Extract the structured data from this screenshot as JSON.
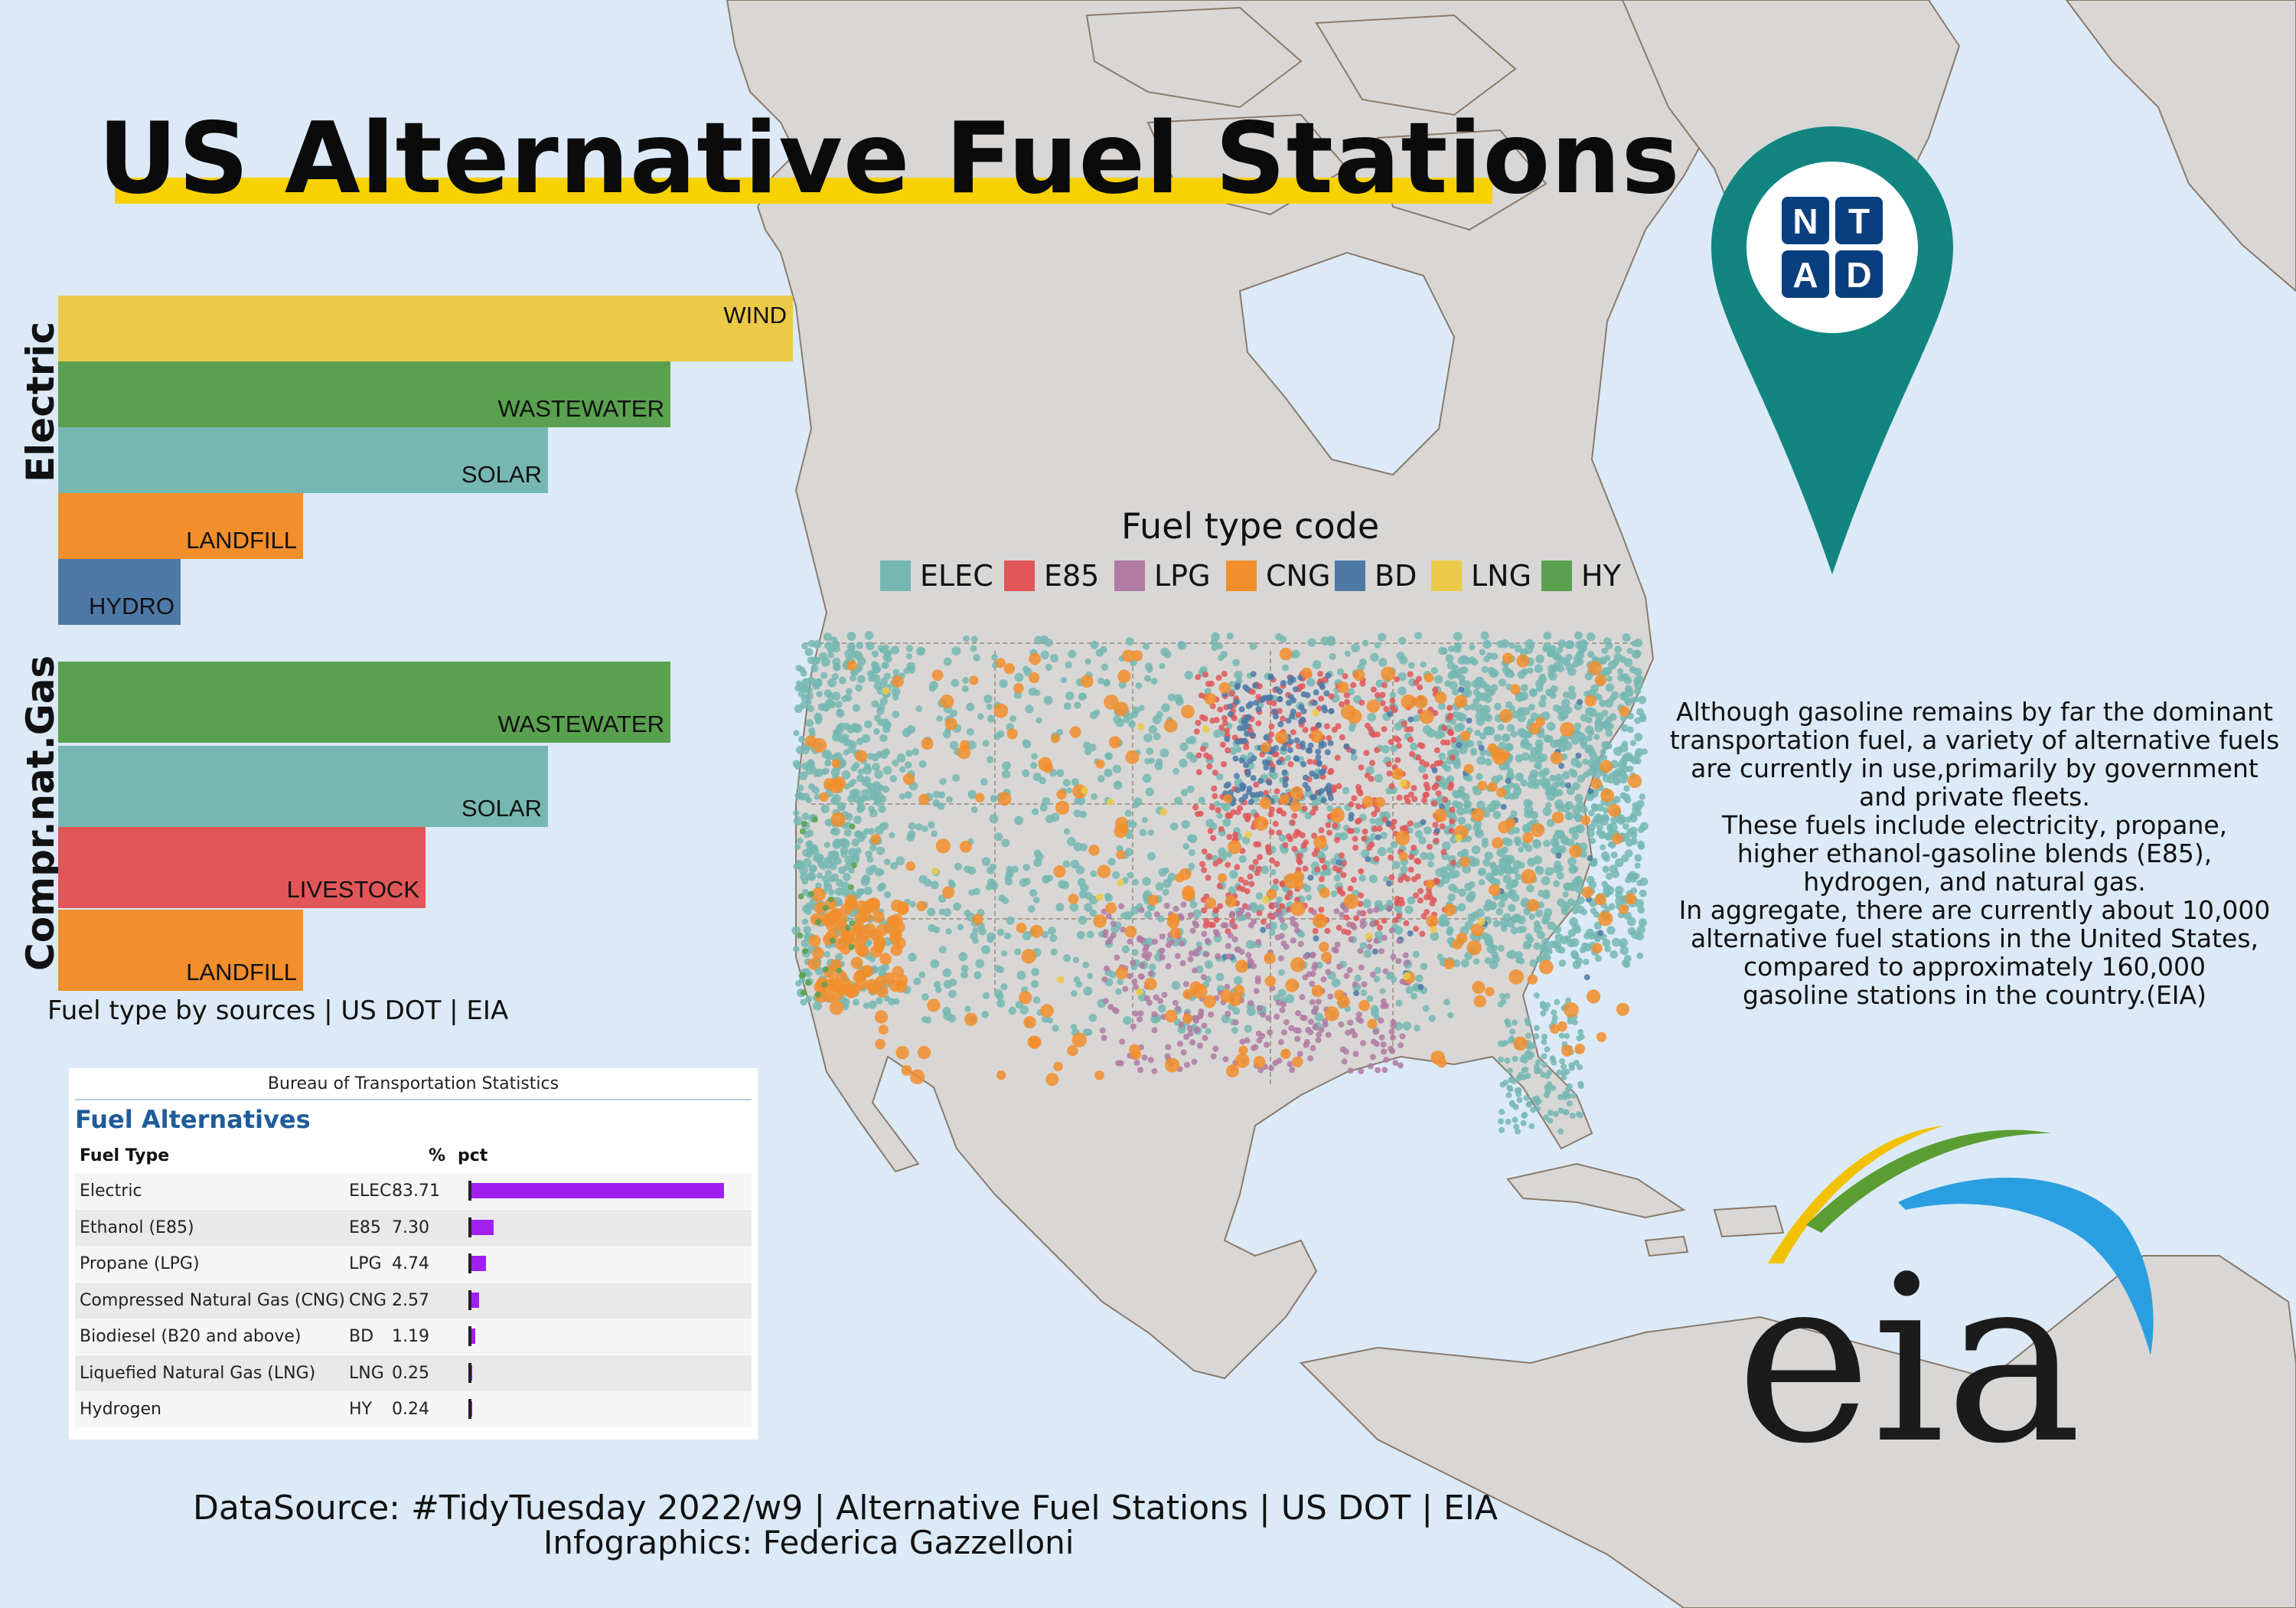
{
  "title": "US Alternative Fuel Stations",
  "colors": {
    "ocean": "#dceaf8",
    "land": "#d8d7d6",
    "title_underline": "#f7d200",
    "ELEC": "#76b7b2",
    "E85": "#e15759",
    "LPG": "#b07aa1",
    "CNG": "#f28e2b",
    "BD": "#4e79a7",
    "LNG": "#edc948",
    "HY": "#59a14f",
    "table_bar": "#a020f0",
    "ntad_pin": "#128580",
    "ntad_tile": "#0a3f7f"
  },
  "legend": {
    "title": "Fuel type code",
    "items": [
      {
        "code": "ELEC",
        "color": "#76b7b2"
      },
      {
        "code": "E85",
        "color": "#e15759"
      },
      {
        "code": "LPG",
        "color": "#b07aa1"
      },
      {
        "code": "CNG",
        "color": "#f28e2b"
      },
      {
        "code": "BD",
        "color": "#4e79a7"
      },
      {
        "code": "LNG",
        "color": "#edc948"
      },
      {
        "code": "HY",
        "color": "#59a14f"
      }
    ]
  },
  "source_charts": {
    "caption": "Fuel type by sources | US DOT | EIA",
    "groups": [
      {
        "name": "Electric",
        "bars": [
          {
            "label": "WIND",
            "value": 6,
            "color": "#edc948"
          },
          {
            "label": "WASTEWATER",
            "value": 5,
            "color": "#59a14f"
          },
          {
            "label": "SOLAR",
            "value": 4,
            "color": "#76b7b2"
          },
          {
            "label": "LANDFILL",
            "value": 2,
            "color": "#f28e2b"
          },
          {
            "label": "HYDRO",
            "value": 1,
            "color": "#4e79a7"
          }
        ]
      },
      {
        "name": "Compr.nat.Gas",
        "bars": [
          {
            "label": "WASTEWATER",
            "value": 5,
            "color": "#59a14f"
          },
          {
            "label": "SOLAR",
            "value": 4,
            "color": "#76b7b2"
          },
          {
            "label": "LIVESTOCK",
            "value": 3,
            "color": "#e15759"
          },
          {
            "label": "LANDFILL",
            "value": 2,
            "color": "#f28e2b"
          }
        ]
      }
    ]
  },
  "paragraph": [
    "Although gasoline remains by far the dominant",
    "transportation fuel, a variety of alternative fuels",
    "are currently in use,primarily by government",
    "and private fleets.",
    "These fuels include electricity, propane,",
    "higher ethanol-gasoline blends (E85),",
    "hydrogen, and natural gas.",
    "In aggregate, there are currently about 10,000",
    "alternative fuel stations in the United States,",
    "compared to approximately 160,000",
    "gasoline stations in the country.(EIA)"
  ],
  "table": {
    "header": "Bureau of Transportation Statistics",
    "title": "Fuel Alternatives",
    "columns": [
      "Fuel Type",
      "%",
      "pct"
    ],
    "rows": [
      {
        "name": "Electric",
        "code": "ELEC",
        "pct": "83.71",
        "value": 83.71
      },
      {
        "name": "Ethanol (E85)",
        "code": "E85",
        "pct": "7.30",
        "value": 7.3
      },
      {
        "name": "Propane (LPG)",
        "code": "LPG",
        "pct": "4.74",
        "value": 4.74
      },
      {
        "name": "Compressed Natural Gas (CNG)",
        "code": "CNG",
        "pct": "2.57",
        "value": 2.57
      },
      {
        "name": "Biodiesel (B20 and above)",
        "code": "BD",
        "pct": "1.19",
        "value": 1.19
      },
      {
        "name": "Liquefied Natural Gas (LNG)",
        "code": "LNG",
        "pct": "0.25",
        "value": 0.25
      },
      {
        "name": "Hydrogen",
        "code": "HY",
        "pct": "0.24",
        "value": 0.24
      }
    ]
  },
  "footer": {
    "line1": "DataSource: #TidyTuesday 2022/w9 | Alternative Fuel Stations | US DOT | EIA",
    "line2": "Infographics: Federica Gazzelloni"
  },
  "logos": {
    "ntad_letters": [
      "N",
      "T",
      "A",
      "D"
    ],
    "eia_wordmark": "eia"
  }
}
